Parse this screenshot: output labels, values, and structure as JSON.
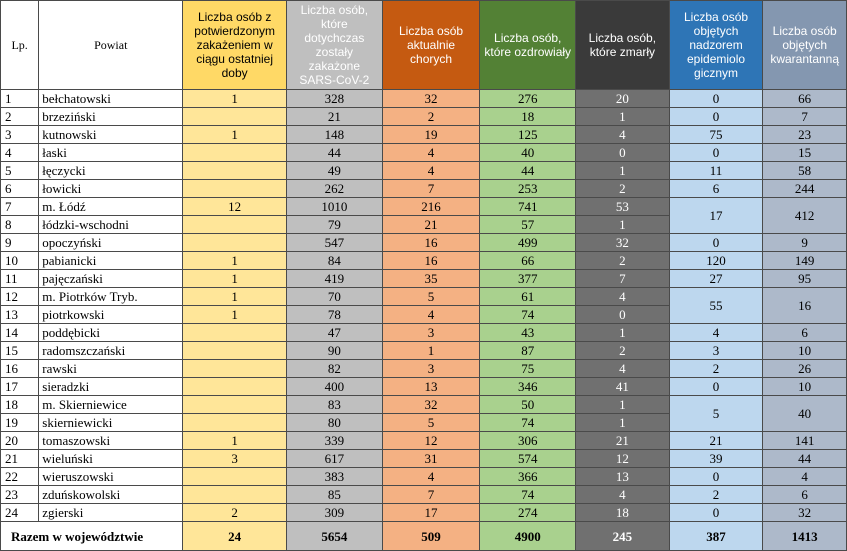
{
  "colors": {
    "c1": "#FFD966",
    "c2": "#BFBFBF",
    "c3": "#C55A11",
    "c4": "#538135",
    "c5": "#3A3A3A",
    "c6": "#2E75B6",
    "c7": "#8497B0",
    "b1": "#FFE699",
    "b2": "#BFBFBF",
    "b3": "#F4B183",
    "b4": "#A9D18E",
    "b5": "#707070",
    "b6": "#BDD7EE",
    "b7": "#ADB9CA"
  },
  "headers": {
    "lp": "Lp.",
    "powiat": "Powiat",
    "c1": "Liczba osób z potwierdzonym zakażeniem w ciągu ostatniej doby",
    "c2": "Liczba osób, które dotychczas zostały zakażone SARS-CoV-2",
    "c3": "Liczba osób aktualnie chorych",
    "c4": "Liczba osób, które ozdrowiały",
    "c5": "Liczba osób, które zmarły",
    "c6": "Liczba osób objętych nadzorem epidemiolo gicznym",
    "c7": "Liczba osób objętych kwarantanną"
  },
  "rows": [
    {
      "lp": "1",
      "powiat": "bełchatowski",
      "c1": "1",
      "c2": "328",
      "c3": "32",
      "c4": "276",
      "c5": "20",
      "c6": "0",
      "c7": "66"
    },
    {
      "lp": "2",
      "powiat": "brzeziński",
      "c1": "",
      "c2": "21",
      "c3": "2",
      "c4": "18",
      "c5": "1",
      "c6": "0",
      "c7": "7"
    },
    {
      "lp": "3",
      "powiat": "kutnowski",
      "c1": "1",
      "c2": "148",
      "c3": "19",
      "c4": "125",
      "c5": "4",
      "c6": "75",
      "c7": "23"
    },
    {
      "lp": "4",
      "powiat": "łaski",
      "c1": "",
      "c2": "44",
      "c3": "4",
      "c4": "40",
      "c5": "0",
      "c6": "0",
      "c7": "15"
    },
    {
      "lp": "5",
      "powiat": "łęczycki",
      "c1": "",
      "c2": "49",
      "c3": "4",
      "c4": "44",
      "c5": "1",
      "c6": "11",
      "c7": "58"
    },
    {
      "lp": "6",
      "powiat": "łowicki",
      "c1": "",
      "c2": "262",
      "c3": "7",
      "c4": "253",
      "c5": "2",
      "c6": "6",
      "c7": "244"
    },
    {
      "lp": "7",
      "powiat": "m. Łódź",
      "c1": "12",
      "c2": "1010",
      "c3": "216",
      "c4": "741",
      "c5": "53",
      "c6": "17",
      "c7": "412"
    },
    {
      "lp": "8",
      "powiat": "łódzki-wschodni",
      "c1": "",
      "c2": "79",
      "c3": "21",
      "c4": "57",
      "c5": "1"
    },
    {
      "lp": "9",
      "powiat": "opoczyński",
      "c1": "",
      "c2": "547",
      "c3": "16",
      "c4": "499",
      "c5": "32",
      "c6": "0",
      "c7": "9"
    },
    {
      "lp": "10",
      "powiat": "pabianicki",
      "c1": "1",
      "c2": "84",
      "c3": "16",
      "c4": "66",
      "c5": "2",
      "c6": "120",
      "c7": "149"
    },
    {
      "lp": "11",
      "powiat": "pajęczański",
      "c1": "1",
      "c2": "419",
      "c3": "35",
      "c4": "377",
      "c5": "7",
      "c6": "27",
      "c7": "95"
    },
    {
      "lp": "12",
      "powiat": "m. Piotrków Tryb.",
      "c1": "1",
      "c2": "70",
      "c3": "5",
      "c4": "61",
      "c5": "4",
      "c6": "55",
      "c7": "16"
    },
    {
      "lp": "13",
      "powiat": "piotrkowski",
      "c1": "1",
      "c2": "78",
      "c3": "4",
      "c4": "74",
      "c5": "0"
    },
    {
      "lp": "14",
      "powiat": "poddębicki",
      "c1": "",
      "c2": "47",
      "c3": "3",
      "c4": "43",
      "c5": "1",
      "c6": "4",
      "c7": "6"
    },
    {
      "lp": "15",
      "powiat": "radomszczański",
      "c1": "",
      "c2": "90",
      "c3": "1",
      "c4": "87",
      "c5": "2",
      "c6": "3",
      "c7": "10"
    },
    {
      "lp": "16",
      "powiat": "rawski",
      "c1": "",
      "c2": "82",
      "c3": "3",
      "c4": "75",
      "c5": "4",
      "c6": "2",
      "c7": "26"
    },
    {
      "lp": "17",
      "powiat": "sieradzki",
      "c1": "",
      "c2": "400",
      "c3": "13",
      "c4": "346",
      "c5": "41",
      "c6": "0",
      "c7": "10"
    },
    {
      "lp": "18",
      "powiat": "m. Skierniewice",
      "c1": "",
      "c2": "83",
      "c3": "32",
      "c4": "50",
      "c5": "1",
      "c6": "5",
      "c7": "40"
    },
    {
      "lp": "19",
      "powiat": "skierniewicki",
      "c1": "",
      "c2": "80",
      "c3": "5",
      "c4": "74",
      "c5": "1"
    },
    {
      "lp": "20",
      "powiat": "tomaszowski",
      "c1": "1",
      "c2": "339",
      "c3": "12",
      "c4": "306",
      "c5": "21",
      "c6": "21",
      "c7": "141"
    },
    {
      "lp": "21",
      "powiat": "wieluński",
      "c1": "3",
      "c2": "617",
      "c3": "31",
      "c4": "574",
      "c5": "12",
      "c6": "39",
      "c7": "44"
    },
    {
      "lp": "22",
      "powiat": "wieruszowski",
      "c1": "",
      "c2": "383",
      "c3": "4",
      "c4": "366",
      "c5": "13",
      "c6": "0",
      "c7": "4"
    },
    {
      "lp": "23",
      "powiat": "zduńskowolski",
      "c1": "",
      "c2": "85",
      "c3": "7",
      "c4": "74",
      "c5": "4",
      "c6": "2",
      "c7": "6"
    },
    {
      "lp": "24",
      "powiat": "zgierski",
      "c1": "2",
      "c2": "309",
      "c3": "17",
      "c4": "274",
      "c5": "18",
      "c6": "0",
      "c7": "32"
    }
  ],
  "totals": {
    "label": "Razem w województwie",
    "c1": "24",
    "c2": "5654",
    "c3": "509",
    "c4": "4900",
    "c5": "245",
    "c6": "387",
    "c7": "1413"
  }
}
